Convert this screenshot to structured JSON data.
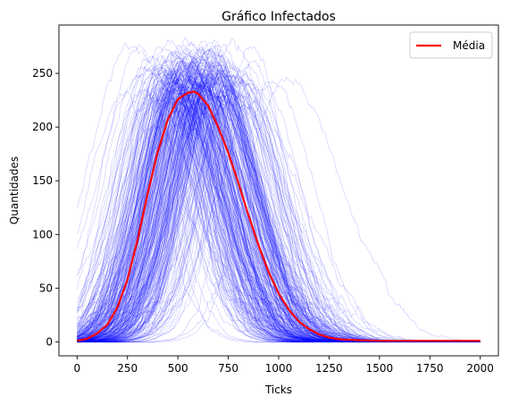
{
  "chart_data": {
    "type": "line",
    "title": "Gráfico Infectados",
    "xlabel": "Ticks",
    "ylabel": "Quantidades",
    "xlim": [
      -90,
      2090
    ],
    "ylim": [
      -13,
      295
    ],
    "xticks": [
      0,
      250,
      500,
      750,
      1000,
      1250,
      1500,
      1750,
      2000
    ],
    "yticks": [
      0,
      50,
      100,
      150,
      200,
      250
    ],
    "grid": false,
    "legend": {
      "placement": "top-right",
      "entries": [
        "Média"
      ]
    },
    "colors": {
      "mean": "#ff0000",
      "runs": "#0000ff"
    },
    "series": [
      {
        "name": "Média",
        "x": [
          0,
          50,
          100,
          150,
          200,
          250,
          300,
          350,
          400,
          450,
          500,
          550,
          580,
          600,
          650,
          700,
          750,
          800,
          850,
          900,
          950,
          1000,
          1050,
          1100,
          1150,
          1200,
          1250,
          1300,
          1400,
          1500,
          1600,
          1750,
          2000
        ],
        "y": [
          1,
          3,
          8,
          16,
          32,
          58,
          95,
          138,
          177,
          207,
          226,
          232,
          233,
          231,
          220,
          200,
          176,
          148,
          118,
          90,
          65,
          45,
          30,
          19,
          12,
          7,
          4,
          2.5,
          1.5,
          1,
          1,
          1,
          1
        ]
      }
    ],
    "runs_description_count": 300
  }
}
